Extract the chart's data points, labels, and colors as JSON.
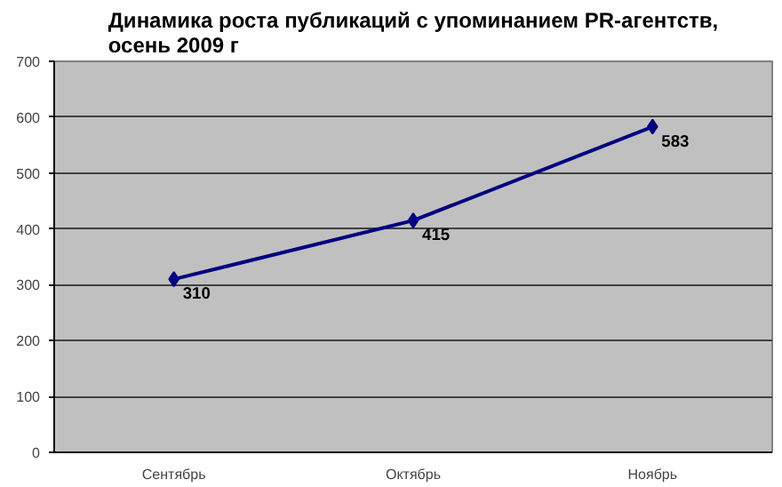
{
  "chart_data": {
    "type": "line",
    "title": "Динамика роста публикаций с упоминанием PR-агентств,\nосень 2009 г",
    "categories": [
      "Сентябрь",
      "Октябрь",
      "Ноябрь"
    ],
    "series": [
      {
        "color": "#000080",
        "values": [
          310,
          415,
          583
        ]
      }
    ],
    "ylim": [
      0,
      700
    ],
    "yticks": [
      0,
      100,
      200,
      300,
      400,
      500,
      600,
      700
    ],
    "grid": "y",
    "marker": "diamond",
    "line_style": "solid",
    "data_labels": true
  }
}
